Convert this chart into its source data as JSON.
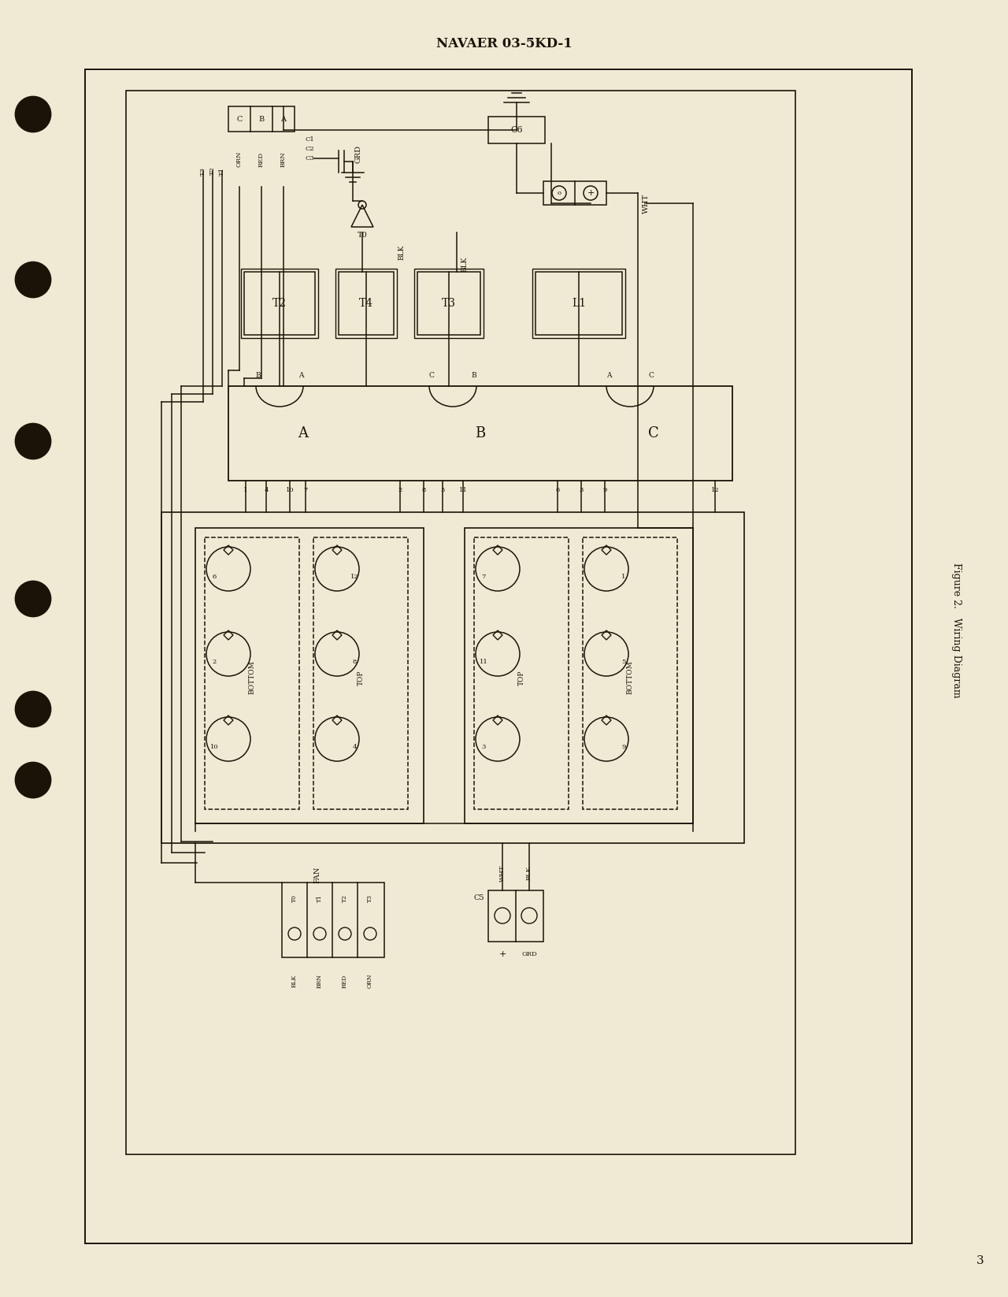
{
  "bg_color": "#f0ead5",
  "line_color": "#1a1408",
  "header_text": "NAVAER 03-5KD-1",
  "figure_caption": "Figure 2.   Wiring Diagram",
  "page_number": "3"
}
